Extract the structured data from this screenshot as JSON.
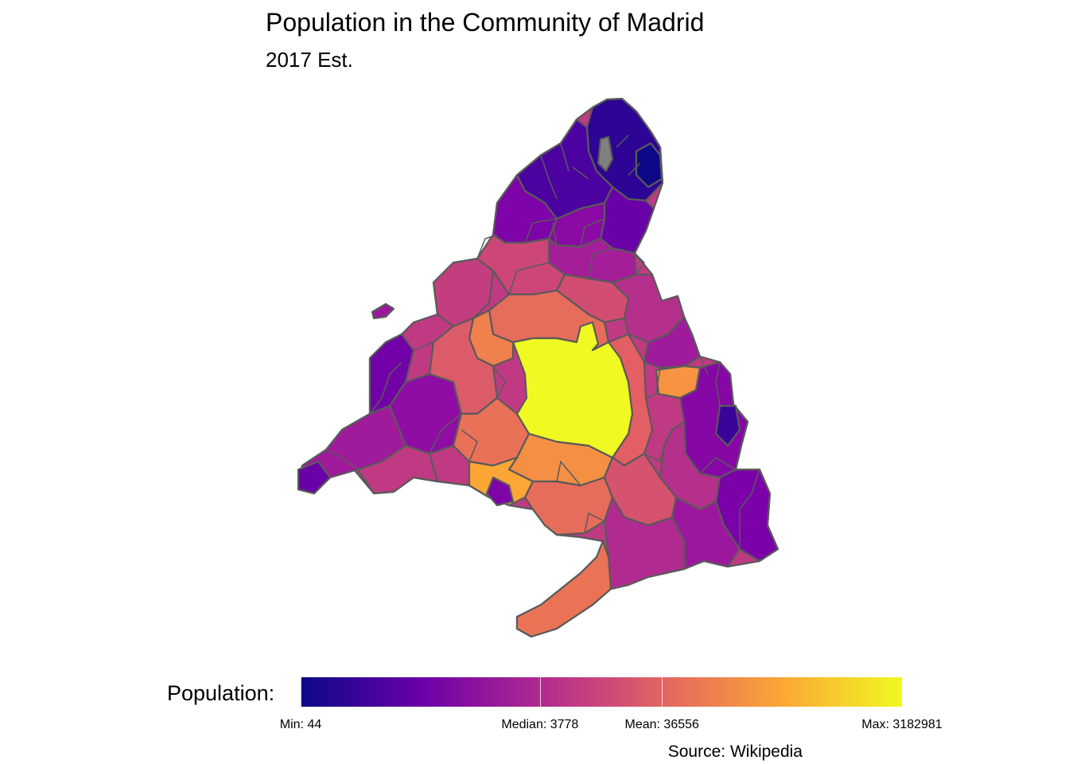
{
  "title": "Population in the Community of Madrid",
  "subtitle": "2017 Est.",
  "legend": {
    "title": "Population:",
    "colors": [
      "#0d0887",
      "#6a00a8",
      "#b12a90",
      "#e16462",
      "#fca636",
      "#f0f921"
    ],
    "no_data_color": "#808080",
    "ticks": [
      {
        "label": "Min: 44",
        "value": 44
      },
      {
        "label": "Median: 3778",
        "value": 3778
      },
      {
        "label": "Mean: 36556",
        "value": 36556
      },
      {
        "label": "Max: 3182981",
        "value": 3182981
      }
    ]
  },
  "caption": "Source: Wikipedia"
}
